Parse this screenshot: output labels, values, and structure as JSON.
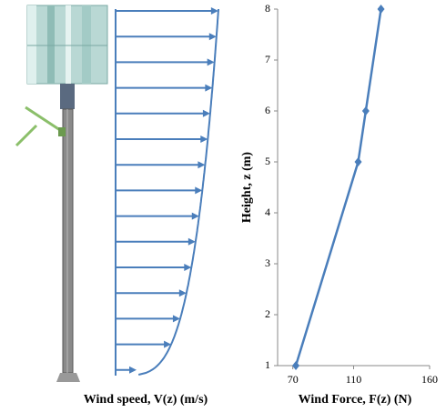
{
  "left_caption": "Wind speed, V(z) (m/s)",
  "chart_data": {
    "type": "line",
    "xlabel": "Wind Force, F(z) (N)",
    "ylabel": "Height, z (m)",
    "x": [
      72,
      113,
      118,
      128
    ],
    "values": [
      1,
      5,
      6,
      8
    ],
    "color": "#4a7ebb",
    "marker": "diamond",
    "xlim": [
      60,
      160
    ],
    "xticks": [
      70,
      110,
      160
    ],
    "ylim": [
      1,
      8
    ],
    "yticks": [
      1,
      2,
      3,
      4,
      5,
      6,
      7,
      8
    ],
    "grid": false
  }
}
